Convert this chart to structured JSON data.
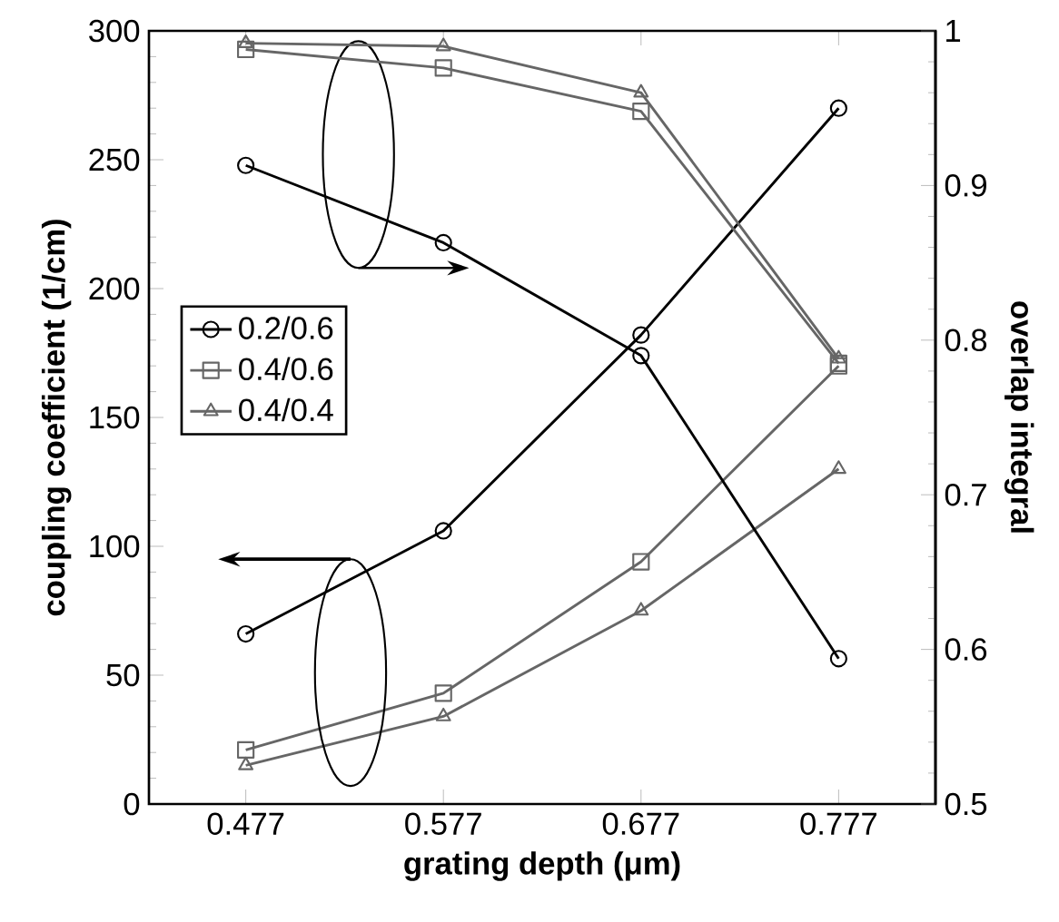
{
  "chart_data": {
    "type": "line",
    "xlabel": "grating depth (μm)",
    "ylabel": "coupling coefficient  (1/cm)",
    "y2label": "overlap integral",
    "x": [
      0.477,
      0.577,
      0.677,
      0.777
    ],
    "xlim": [
      0.428,
      0.826
    ],
    "xticks": [
      0.477,
      0.577,
      0.677,
      0.777
    ],
    "ylim": [
      0,
      300
    ],
    "yticks": [
      0,
      50,
      100,
      150,
      200,
      250,
      300
    ],
    "y2lim": [
      0.5,
      1
    ],
    "y2ticks": [
      0.5,
      0.6,
      0.7,
      0.8,
      0.9,
      1
    ],
    "legend": "left",
    "grid": false,
    "line_style": "solid",
    "series": [
      {
        "name": "0.2/0.6",
        "color": "#000000",
        "marker": "circle",
        "values": [
          66,
          106,
          182,
          270
        ]
      },
      {
        "name": "0.4/0.6",
        "color": "#666666",
        "marker": "square",
        "values": [
          21,
          43,
          94,
          170
        ]
      },
      {
        "name": "0.4/0.4",
        "color": "#666666",
        "marker": "triangle",
        "values": [
          15,
          34,
          75,
          130
        ]
      },
      {
        "color": "#000000",
        "marker": "circle",
        "axis": "y2",
        "values": [
          0.913,
          0.863,
          0.79,
          0.594
        ]
      },
      {
        "color": "#666666",
        "marker": "square",
        "axis": "y2",
        "values": [
          0.988,
          0.976,
          0.948,
          0.785
        ]
      },
      {
        "color": "#666666",
        "marker": "triangle",
        "axis": "y2",
        "values": [
          0.992,
          0.99,
          0.96,
          0.788
        ]
      }
    ]
  }
}
